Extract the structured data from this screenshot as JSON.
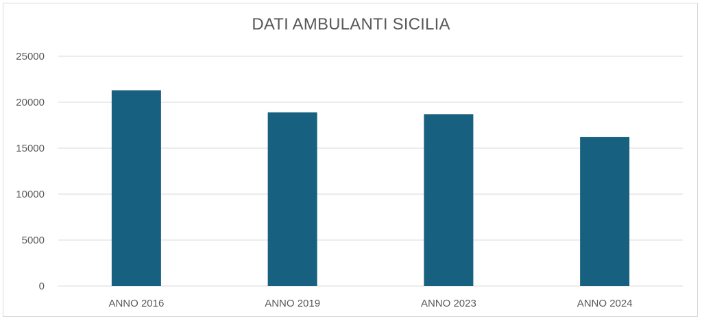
{
  "chart_data": {
    "type": "bar",
    "title": "DATI AMBULANTI SICILIA",
    "categories": [
      "ANNO 2016",
      "ANNO 2019",
      "ANNO 2023",
      "ANNO 2024"
    ],
    "values": [
      21300,
      18900,
      18700,
      16200
    ],
    "ylim": [
      0,
      25000
    ],
    "yticks": [
      0,
      5000,
      10000,
      15000,
      20000,
      25000
    ],
    "xlabel": "",
    "ylabel": "",
    "grid": true,
    "legend": "none",
    "bar_color": "#17607f",
    "grid_color": "#d9d9d9"
  }
}
